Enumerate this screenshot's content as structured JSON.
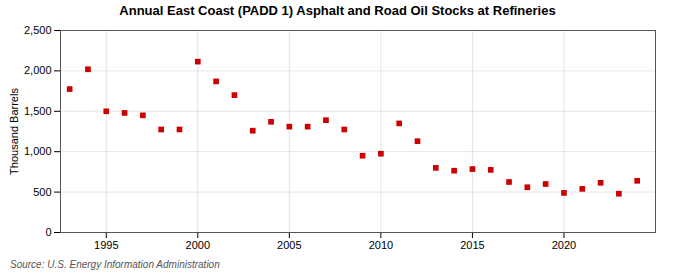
{
  "chart_data": {
    "type": "scatter",
    "title": "Annual East Coast (PADD 1) Asphalt and Road Oil Stocks at Refineries",
    "ylabel": "Thousand Barrels",
    "source": "Source: U.S. Energy Information Administration",
    "x": [
      1993,
      1994,
      1995,
      1996,
      1997,
      1998,
      1999,
      2000,
      2001,
      2002,
      2003,
      2004,
      2005,
      2006,
      2007,
      2008,
      2009,
      2010,
      2011,
      2012,
      2013,
      2014,
      2015,
      2016,
      2017,
      2018,
      2019,
      2020,
      2021,
      2022,
      2023,
      2024
    ],
    "values": [
      1775,
      2020,
      1500,
      1480,
      1450,
      1275,
      1275,
      2115,
      1870,
      1700,
      1260,
      1370,
      1310,
      1310,
      1390,
      1275,
      950,
      975,
      1350,
      1130,
      800,
      765,
      785,
      775,
      625,
      560,
      600,
      490,
      540,
      615,
      480,
      640
    ],
    "color": "#cc0000",
    "marker": "square",
    "xlim": [
      1992.5,
      2025
    ],
    "xticks": [
      1995,
      2000,
      2005,
      2010,
      2015,
      2020
    ],
    "ylim": [
      0,
      2500
    ],
    "yticks": [
      0,
      500,
      {
        "value": 1000,
        "label": "1,000"
      },
      {
        "value": 1500,
        "label": "1,500"
      },
      {
        "value": 2000,
        "label": "2,000"
      },
      {
        "value": 2500,
        "label": "2,500"
      }
    ],
    "grid": true
  }
}
